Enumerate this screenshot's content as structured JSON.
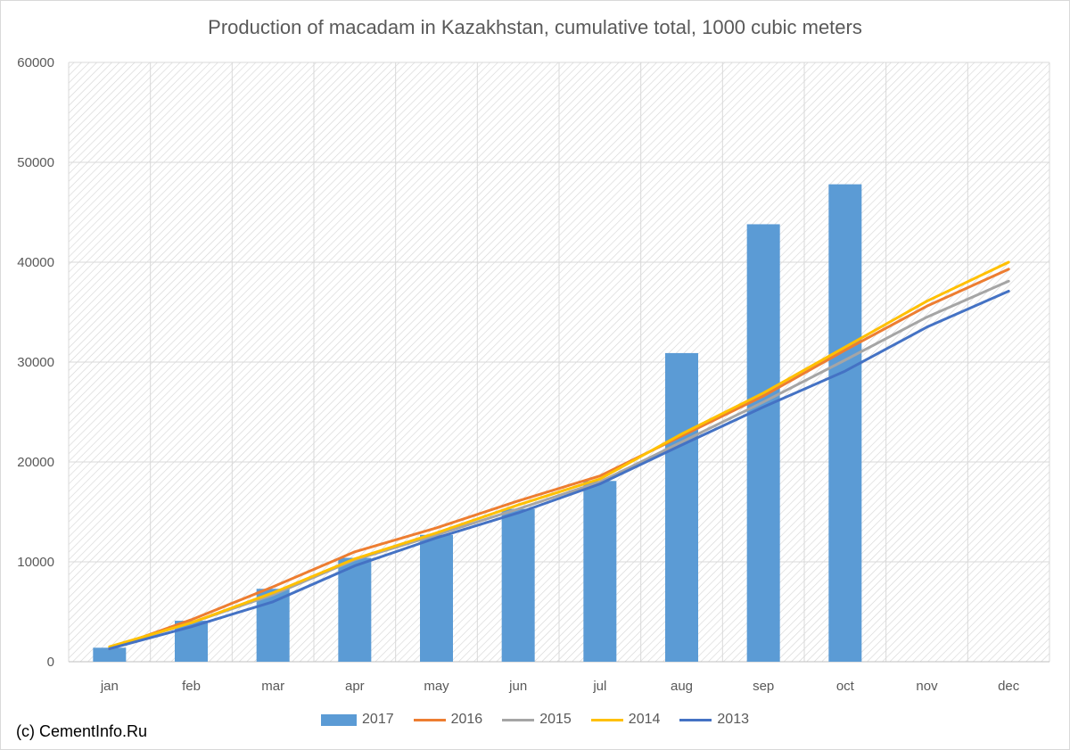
{
  "page": {
    "credit": "(c) CementInfo.Ru"
  },
  "chart_data": {
    "type": "bar",
    "title": "Production of macadam in Kazakhstan, cumulative total, 1000 cubic meters",
    "categories": [
      "jan",
      "feb",
      "mar",
      "apr",
      "may",
      "jun",
      "jul",
      "aug",
      "sep",
      "oct",
      "nov",
      "dec"
    ],
    "ylim": [
      0,
      60000
    ],
    "yticks": [
      0,
      10000,
      20000,
      30000,
      40000,
      50000,
      60000
    ],
    "grid": true,
    "legend_position": "bottom",
    "series": [
      {
        "name": "2017",
        "kind": "bar",
        "color": "#5b9bd5",
        "values": [
          1400,
          4100,
          7300,
          10400,
          12700,
          15300,
          18100,
          30900,
          43800,
          47800,
          null,
          null
        ]
      },
      {
        "name": "2016",
        "kind": "line",
        "color": "#ed7d31",
        "values": [
          1300,
          4200,
          7500,
          11000,
          13400,
          16100,
          18600,
          22600,
          26600,
          31200,
          35600,
          39300
        ]
      },
      {
        "name": "2015",
        "kind": "line",
        "color": "#a5a5a5",
        "values": [
          1400,
          3900,
          6700,
          10200,
          12700,
          15300,
          18000,
          22000,
          26000,
          30200,
          34500,
          38100
        ]
      },
      {
        "name": "2014",
        "kind": "line",
        "color": "#ffc000",
        "values": [
          1500,
          3900,
          6900,
          10300,
          12900,
          15700,
          18300,
          22800,
          26900,
          31500,
          36100,
          40000
        ]
      },
      {
        "name": "2013",
        "kind": "line",
        "color": "#4472c4",
        "values": [
          1300,
          3500,
          6000,
          9600,
          12400,
          14900,
          17800,
          21700,
          25500,
          29100,
          33500,
          37100
        ]
      }
    ]
  }
}
